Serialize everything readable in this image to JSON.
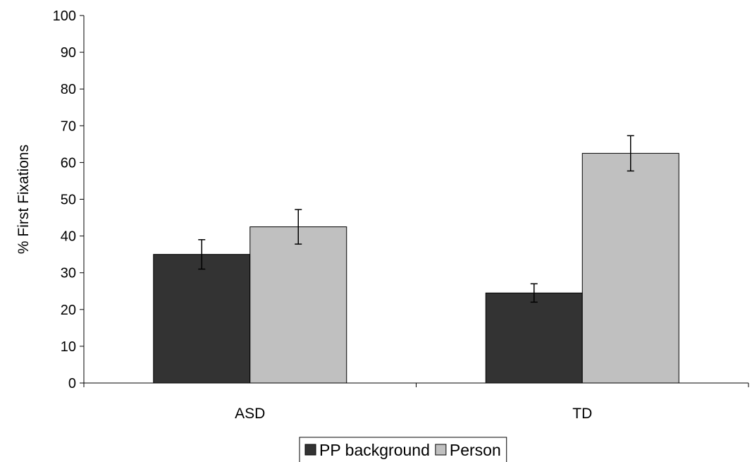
{
  "chart_data": {
    "type": "bar",
    "title": "",
    "xlabel": "",
    "ylabel": "% First Fixations",
    "ylim": [
      0,
      100
    ],
    "yticks": [
      0,
      10,
      20,
      30,
      40,
      50,
      60,
      70,
      80,
      90,
      100
    ],
    "categories": [
      "ASD",
      "TD"
    ],
    "series": [
      {
        "name": "PP background",
        "color": "#333333",
        "values": [
          35,
          24.5
        ],
        "errors": [
          4,
          2.5
        ]
      },
      {
        "name": "Person",
        "color": "#c0c0c0",
        "values": [
          42.5,
          62.5
        ],
        "errors": [
          4.7,
          4.8
        ]
      }
    ],
    "grid": false,
    "legend_position": "bottom-center"
  }
}
